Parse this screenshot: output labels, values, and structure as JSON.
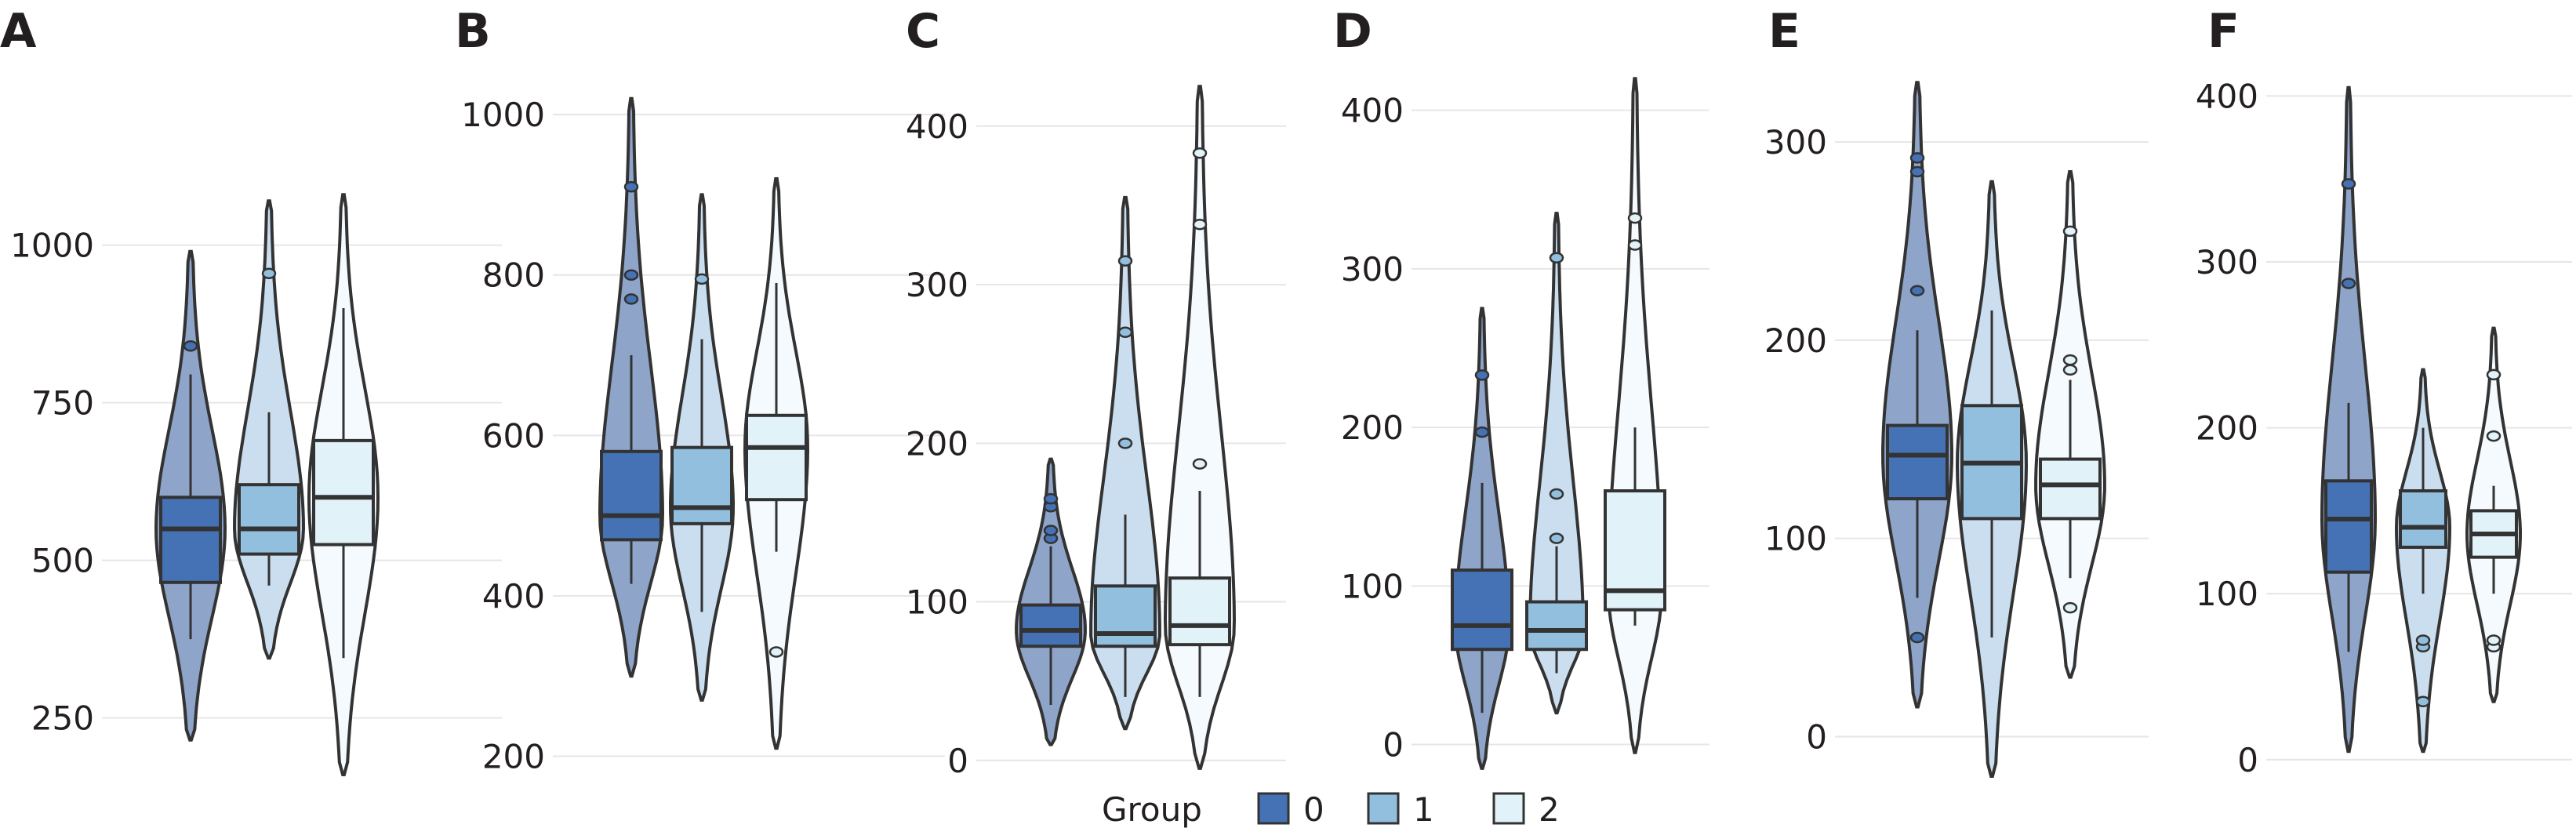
{
  "chart_data": [
    {
      "panel": "A",
      "type": "violin-box",
      "yticks": [
        250,
        500,
        750,
        1000
      ],
      "ylim": [
        170,
        1150
      ],
      "groups": [
        {
          "group": "0",
          "violin": [
            215,
            990
          ],
          "q1": 465,
          "median": 550,
          "q3": 600,
          "whisker": [
            375,
            795
          ],
          "outliers": [
            840
          ]
        },
        {
          "group": "1",
          "violin": [
            345,
            1070
          ],
          "q1": 510,
          "median": 550,
          "q3": 620,
          "whisker": [
            460,
            735
          ],
          "outliers": [
            955
          ]
        },
        {
          "group": "2",
          "violin": [
            160,
            1080
          ],
          "q1": 525,
          "median": 600,
          "q3": 690,
          "whisker": [
            345,
            900
          ],
          "outliers": []
        }
      ]
    },
    {
      "panel": "B",
      "type": "violin-box",
      "yticks": [
        200,
        400,
        600,
        800,
        1000
      ],
      "ylim": [
        180,
        1050
      ],
      "groups": [
        {
          "group": "0",
          "violin": [
            300,
            1020
          ],
          "q1": 470,
          "median": 500,
          "q3": 580,
          "whisker": [
            415,
            700
          ],
          "outliers": [
            770,
            800,
            910
          ]
        },
        {
          "group": "1",
          "violin": [
            270,
            900
          ],
          "q1": 490,
          "median": 510,
          "q3": 585,
          "whisker": [
            380,
            720
          ],
          "outliers": [
            795
          ]
        },
        {
          "group": "2",
          "violin": [
            210,
            920
          ],
          "q1": 520,
          "median": 585,
          "q3": 625,
          "whisker": [
            455,
            790
          ],
          "outliers": [
            330
          ]
        }
      ]
    },
    {
      "panel": "C",
      "type": "violin-box",
      "yticks": [
        0,
        100,
        200,
        300,
        400
      ],
      "ylim": [
        -10,
        440
      ],
      "groups": [
        {
          "group": "0",
          "violin": [
            10,
            190
          ],
          "q1": 72,
          "median": 82,
          "q3": 98,
          "whisker": [
            35,
            135
          ],
          "outliers": [
            140,
            145,
            160,
            165
          ]
        },
        {
          "group": "1",
          "violin": [
            20,
            355
          ],
          "q1": 72,
          "median": 80,
          "q3": 110,
          "whisker": [
            40,
            155
          ],
          "outliers": [
            200,
            270,
            315
          ]
        },
        {
          "group": "2",
          "violin": [
            -5,
            425
          ],
          "q1": 73,
          "median": 85,
          "q3": 115,
          "whisker": [
            40,
            170
          ],
          "outliers": [
            187,
            338,
            383
          ]
        }
      ]
    },
    {
      "panel": "D",
      "type": "violin-box",
      "yticks": [
        0,
        100,
        200,
        300,
        400
      ],
      "ylim": [
        -20,
        430
      ],
      "groups": [
        {
          "group": "0",
          "violin": [
            -15,
            275
          ],
          "q1": 60,
          "median": 75,
          "q3": 110,
          "whisker": [
            20,
            165
          ],
          "outliers": [
            197,
            233
          ]
        },
        {
          "group": "1",
          "violin": [
            20,
            335
          ],
          "q1": 60,
          "median": 72,
          "q3": 90,
          "whisker": [
            45,
            125
          ],
          "outliers": [
            130,
            158,
            307
          ]
        },
        {
          "group": "2",
          "violin": [
            -5,
            420
          ],
          "q1": 85,
          "median": 97,
          "q3": 160,
          "whisker": [
            75,
            200
          ],
          "outliers": [
            315,
            332
          ]
        }
      ]
    },
    {
      "panel": "E",
      "type": "violin-box",
      "yticks": [
        0,
        100,
        200,
        300
      ],
      "ylim": [
        -20,
        340
      ],
      "groups": [
        {
          "group": "0",
          "violin": [
            15,
            330
          ],
          "q1": 120,
          "median": 142,
          "q3": 157,
          "whisker": [
            70,
            205
          ],
          "outliers": [
            50,
            225,
            285,
            292
          ]
        },
        {
          "group": "1",
          "violin": [
            -20,
            280
          ],
          "q1": 110,
          "median": 138,
          "q3": 167,
          "whisker": [
            50,
            215
          ],
          "outliers": []
        },
        {
          "group": "2",
          "violin": [
            30,
            285
          ],
          "q1": 110,
          "median": 127,
          "q3": 140,
          "whisker": [
            80,
            180
          ],
          "outliers": [
            65,
            185,
            190,
            255
          ]
        }
      ]
    },
    {
      "panel": "F",
      "type": "violin-box",
      "yticks": [
        0,
        100,
        200,
        300,
        400
      ],
      "ylim": [
        -10,
        420
      ],
      "groups": [
        {
          "group": "0",
          "violin": [
            5,
            405
          ],
          "q1": 113,
          "median": 145,
          "q3": 168,
          "whisker": [
            65,
            215
          ],
          "outliers": [
            287,
            347
          ]
        },
        {
          "group": "1",
          "violin": [
            5,
            235
          ],
          "q1": 128,
          "median": 140,
          "q3": 162,
          "whisker": [
            100,
            200
          ],
          "outliers": [
            35,
            68,
            72
          ]
        },
        {
          "group": "2",
          "violin": [
            35,
            260
          ],
          "q1": 122,
          "median": 136,
          "q3": 150,
          "whisker": [
            100,
            165
          ],
          "outliers": [
            68,
            72,
            195,
            232
          ]
        }
      ]
    }
  ],
  "legend": {
    "title": "Group",
    "items": [
      {
        "label": "0",
        "color": "#4472b4"
      },
      {
        "label": "1",
        "color": "#93bfdf"
      },
      {
        "label": "2",
        "color": "#e1f2f9"
      }
    ]
  },
  "colors": {
    "box": [
      "#4472b4",
      "#93bfdf",
      "#e1f2f9"
    ],
    "violin": [
      "#8ea4c8",
      "#cadeef",
      "#f4fafd"
    ],
    "outline": "#333333"
  }
}
